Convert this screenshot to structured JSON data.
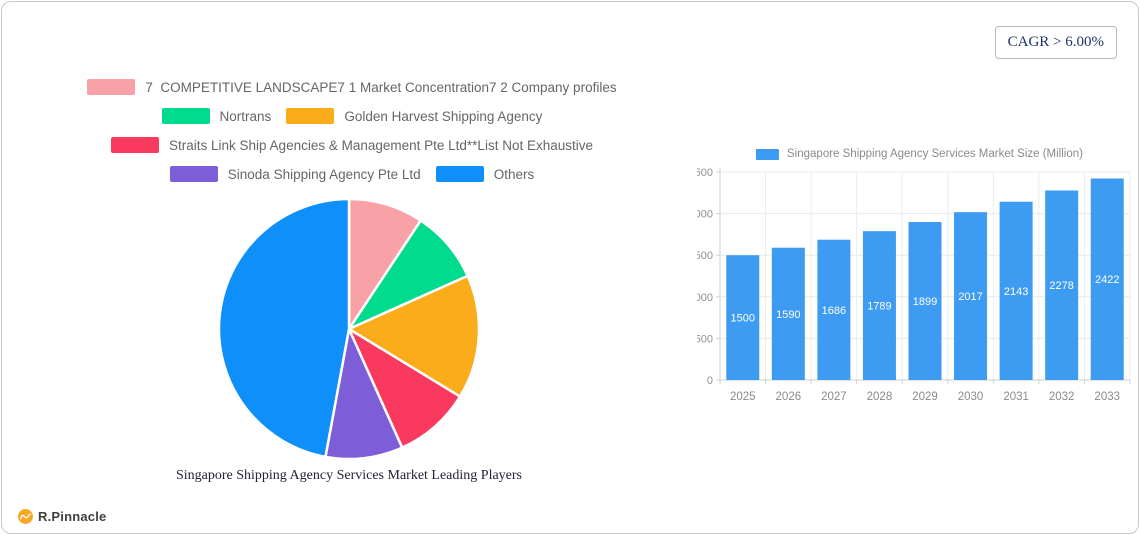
{
  "badge": {
    "text": "CAGR > 6.00%"
  },
  "logo": {
    "text": "R.Pinnacle"
  },
  "pie": {
    "title": "Singapore Shipping Agency Services Market Leading Players"
  },
  "bar": {
    "legend": "Singapore Shipping Agency Services Market Size (Million)"
  },
  "chart_data": [
    {
      "type": "pie",
      "title": "Singapore Shipping Agency Services Market Leading Players",
      "labels": [
        "7  COMPETITIVE LANDSCAPE7 1 Market Concentration7 2 Company profiles",
        "Nortrans",
        "Golden Harvest Shipping Agency",
        "Straits Link Ship Agencies & Management Pte Ltd**List Not Exhaustive",
        "Sinoda Shipping Agency Pte Ltd",
        "Others"
      ],
      "values": [
        9.3,
        9.0,
        15.4,
        9.6,
        9.6,
        47.1
      ],
      "unit": "percent-estimated",
      "colors": [
        "#f8a1a7",
        "#00db8e",
        "#faac1b",
        "#f93a5e",
        "#7d5dd8",
        "#0e8ff9"
      ],
      "slice_border_color": "#ffffff",
      "start_angle_deg": 0,
      "legend_position": "top"
    },
    {
      "type": "bar",
      "legend": "Singapore Shipping Agency Services Market Size (Million)",
      "categories": [
        "2025",
        "2026",
        "2027",
        "2028",
        "2029",
        "2030",
        "2031",
        "2032",
        "2033"
      ],
      "values": [
        1500,
        1590,
        1686,
        1789,
        1899,
        2017,
        2143,
        2278,
        2422
      ],
      "ylim": [
        0,
        2500
      ],
      "yticks": [
        0,
        500,
        1000,
        1500,
        2000,
        2500
      ],
      "bar_color": "#3e9bf2",
      "grid": true,
      "value_label_color": "#ffffff",
      "axis_text_color": "#8f8f8f"
    }
  ]
}
